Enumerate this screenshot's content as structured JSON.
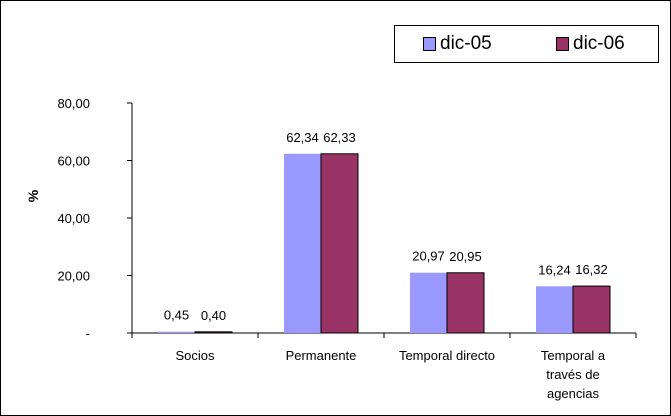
{
  "chart_data": {
    "type": "bar",
    "categories": [
      "Socios",
      "Permanente",
      "Temporal directo",
      "Temporal a través de agencias"
    ],
    "category_lines": [
      [
        "Socios"
      ],
      [
        "Permanente"
      ],
      [
        "Temporal directo"
      ],
      [
        "Temporal a",
        "través de",
        "agencias"
      ]
    ],
    "series": [
      {
        "name": "dic-05",
        "values": [
          0.45,
          62.34,
          20.97,
          16.24
        ],
        "labels": [
          "0,45",
          "62,34",
          "20,97",
          "16,24"
        ],
        "color": "#9999FF"
      },
      {
        "name": "dic-06",
        "values": [
          0.4,
          62.33,
          20.95,
          16.32
        ],
        "labels": [
          "0,40",
          "62,33",
          "20,95",
          "16,32"
        ],
        "color": "#993366"
      }
    ],
    "title": "",
    "xlabel": "",
    "ylabel": "%",
    "ylim": [
      0,
      80
    ],
    "yticks": [
      0,
      20,
      40,
      60,
      80
    ],
    "ytick_labels": [
      "-",
      "20,00",
      "40,00",
      "60,00",
      "80,00"
    ],
    "grid": false,
    "legend_position": "top-right"
  }
}
